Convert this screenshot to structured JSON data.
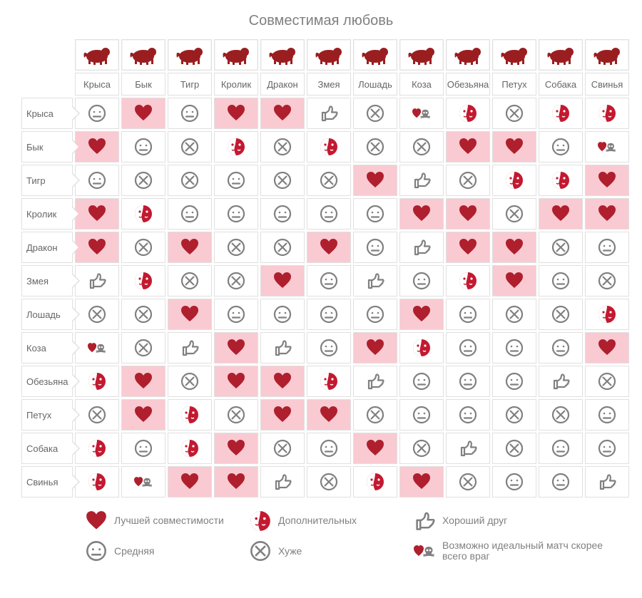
{
  "title": "Совместимая любовь",
  "colors": {
    "zodiac": "#9a1e20",
    "heart": "#af1f2d",
    "half": "#c31930",
    "stroke": "#808080",
    "cell_highlight": "#f9cad2",
    "border": "#e0e0e0",
    "text": "#808080"
  },
  "animals": [
    "Крыса",
    "Бык",
    "Тигр",
    "Кролик",
    "Дракон",
    "Змея",
    "Лошадь",
    "Коза",
    "Обезьяна",
    "Петух",
    "Собака",
    "Свинья"
  ],
  "symbols": {
    "heart": {
      "label": "Лучшей совместимости",
      "highlight": true
    },
    "half": {
      "label": "Дополнительных",
      "highlight": false
    },
    "thumb": {
      "label": "Хороший друг",
      "highlight": false
    },
    "neutral": {
      "label": "Средняя",
      "highlight": false
    },
    "cross": {
      "label": "Хуже",
      "highlight": false
    },
    "skull": {
      "label": "Возможно идеальный матч скорее всего враг",
      "highlight": false
    }
  },
  "legend_order": [
    "heart",
    "half",
    "thumb",
    "neutral",
    "cross",
    "skull"
  ],
  "matrix": [
    [
      "neutral",
      "heart",
      "neutral",
      "heart",
      "heart",
      "thumb",
      "cross",
      "skull",
      "half",
      "cross",
      "half",
      "half"
    ],
    [
      "heart",
      "neutral",
      "cross",
      "half",
      "cross",
      "half",
      "cross",
      "cross",
      "heart",
      "heart",
      "neutral",
      "skull"
    ],
    [
      "neutral",
      "cross",
      "cross",
      "neutral",
      "cross",
      "cross",
      "heart",
      "thumb",
      "cross",
      "half",
      "half",
      "heart"
    ],
    [
      "heart",
      "half",
      "neutral",
      "neutral",
      "neutral",
      "neutral",
      "neutral",
      "heart",
      "heart",
      "cross",
      "heart",
      "heart"
    ],
    [
      "heart",
      "cross",
      "heart",
      "cross",
      "cross",
      "heart",
      "neutral",
      "thumb",
      "heart",
      "heart",
      "cross",
      "neutral"
    ],
    [
      "thumb",
      "half",
      "cross",
      "cross",
      "heart",
      "neutral",
      "thumb",
      "neutral",
      "half",
      "heart",
      "neutral",
      "cross"
    ],
    [
      "cross",
      "cross",
      "heart",
      "neutral",
      "neutral",
      "neutral",
      "neutral",
      "heart",
      "neutral",
      "cross",
      "cross",
      "half"
    ],
    [
      "skull",
      "cross",
      "thumb",
      "heart",
      "thumb",
      "neutral",
      "heart",
      "half",
      "neutral",
      "neutral",
      "neutral",
      "heart"
    ],
    [
      "half",
      "heart",
      "cross",
      "heart",
      "heart",
      "half",
      "thumb",
      "neutral",
      "neutral",
      "neutral",
      "thumb",
      "cross"
    ],
    [
      "cross",
      "heart",
      "half",
      "cross",
      "heart",
      "heart",
      "cross",
      "neutral",
      "neutral",
      "cross",
      "cross",
      "neutral"
    ],
    [
      "half",
      "neutral",
      "half",
      "heart",
      "cross",
      "neutral",
      "heart",
      "cross",
      "thumb",
      "cross",
      "neutral",
      "neutral"
    ],
    [
      "half",
      "skull",
      "heart",
      "heart",
      "thumb",
      "cross",
      "half",
      "heart",
      "cross",
      "neutral",
      "neutral",
      "thumb"
    ]
  ]
}
